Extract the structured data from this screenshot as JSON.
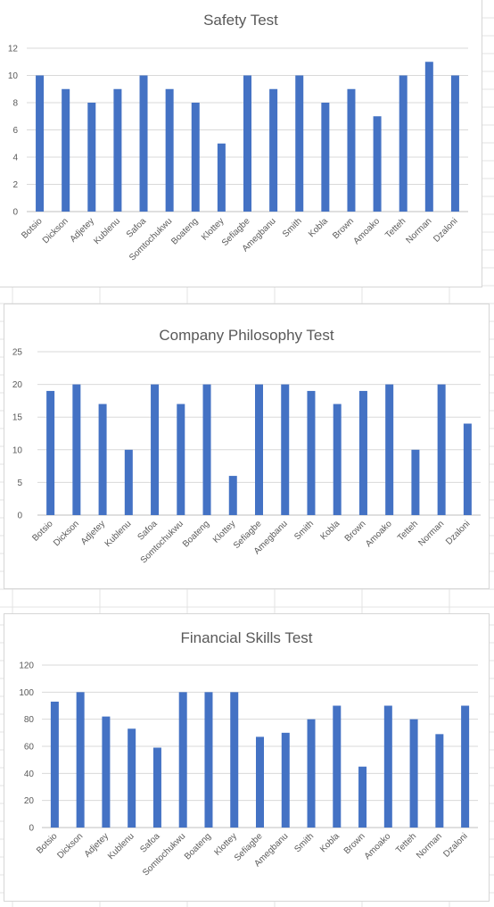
{
  "chart_data": [
    {
      "type": "bar",
      "title": "Safety Test",
      "categories": [
        "Botsio",
        "Dickson",
        "Adjetey",
        "Kublenu",
        "Safoa",
        "Somtochukwu",
        "Boateng",
        "Klottey",
        "Sefiagbe",
        "Amegbanu",
        "Smith",
        "Kobla",
        "Brown",
        "Amoako",
        "Tetteh",
        "Norman",
        "Dzaloni"
      ],
      "values": [
        10,
        9,
        8,
        9,
        10,
        9,
        8,
        5,
        10,
        9,
        10,
        8,
        9,
        7,
        10,
        11,
        10
      ],
      "ylim": [
        0,
        12
      ],
      "yticks": [
        "0",
        "2",
        "4",
        "6",
        "8",
        "10",
        "12"
      ],
      "grid": true,
      "bar_color": "#4472c4",
      "xlabel": "",
      "ylabel": ""
    },
    {
      "type": "bar",
      "title": "Company Philosophy Test",
      "categories": [
        "Botsio",
        "Dickson",
        "Adjetey",
        "Kublenu",
        "Safoa",
        "Somtochukwu",
        "Boateng",
        "Klottey",
        "Sefiagbe",
        "Amegbanu",
        "Smith",
        "Kobla",
        "Brown",
        "Amoako",
        "Tetteh",
        "Norman",
        "Dzaloni"
      ],
      "values": [
        19,
        20,
        17,
        10,
        20,
        17,
        20,
        6,
        20,
        20,
        19,
        17,
        19,
        20,
        10,
        20,
        14
      ],
      "ylim": [
        0,
        25
      ],
      "yticks": [
        "0",
        "5",
        "10",
        "15",
        "20",
        "25"
      ],
      "grid": true,
      "bar_color": "#4472c4",
      "xlabel": "",
      "ylabel": ""
    },
    {
      "type": "bar",
      "title": "Financial Skills Test",
      "categories": [
        "Botsio",
        "Dickson",
        "Adjetey",
        "Kublenu",
        "Safoa",
        "Somtochukwu",
        "Boateng",
        "Klottey",
        "Sefiagbe",
        "Amegbanu",
        "Smith",
        "Kobla",
        "Brown",
        "Amoako",
        "Tetteh",
        "Norman",
        "Dzaloni"
      ],
      "values": [
        93,
        100,
        82,
        73,
        59,
        100,
        100,
        100,
        67,
        70,
        80,
        90,
        45,
        90,
        80,
        69,
        90
      ],
      "ylim": [
        0,
        120
      ],
      "yticks": [
        "0",
        "20",
        "40",
        "60",
        "80",
        "100",
        "120"
      ],
      "grid": true,
      "bar_color": "#4472c4",
      "xlabel": "",
      "ylabel": ""
    }
  ]
}
